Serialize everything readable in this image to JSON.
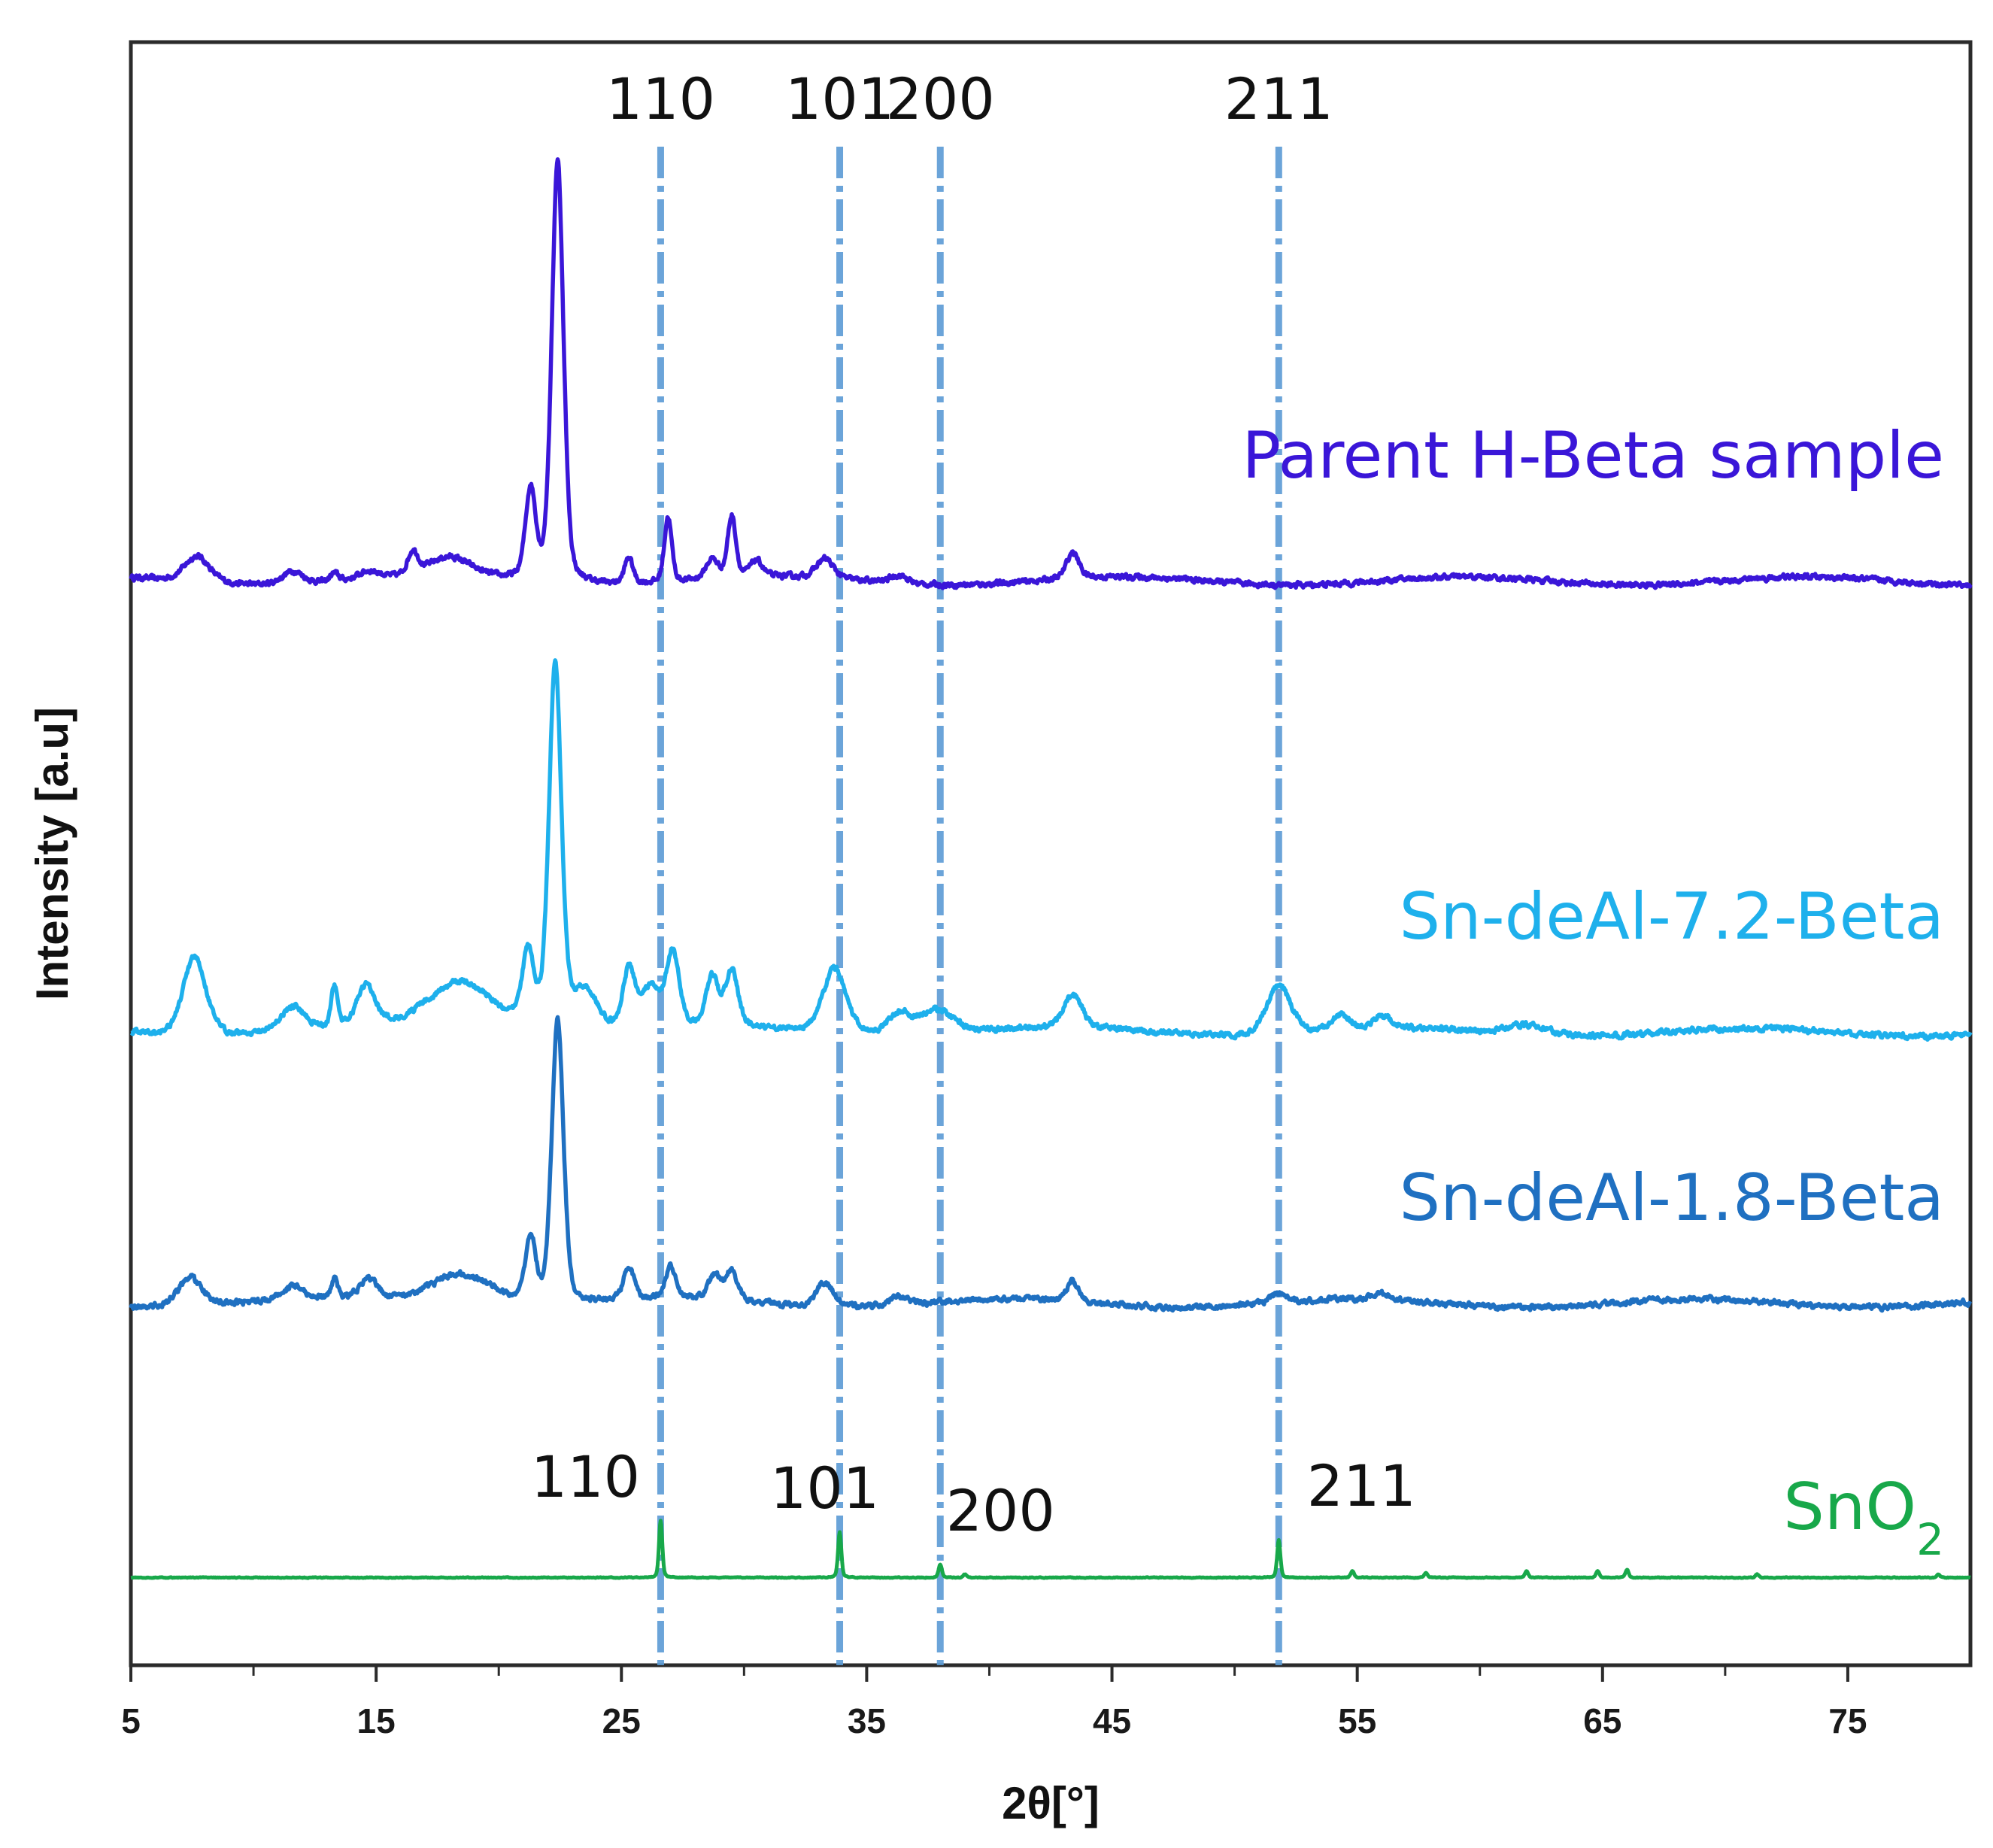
{
  "chart_data": {
    "type": "line",
    "title": "",
    "xlabel": "2θ[°]",
    "ylabel": "Intensity [a.u]",
    "xlim": [
      5,
      80
    ],
    "ylim": [
      0,
      100
    ],
    "grid": false,
    "x_ticks": [
      5,
      15,
      25,
      35,
      45,
      55,
      65,
      75
    ],
    "x_tick_labels": [
      "5",
      "15",
      "25",
      "35",
      "45",
      "55",
      "65",
      "75"
    ],
    "reference_lines": {
      "style": "dash-dot",
      "color": "#5b9bd5",
      "positions": [
        26.6,
        33.9,
        38.0,
        51.8
      ]
    },
    "top_hkl_labels": [
      {
        "text": "110",
        "x": 26.6
      },
      {
        "text": "101",
        "x": 33.9
      },
      {
        "text": "200",
        "x": 38.0
      },
      {
        "text": "211",
        "x": 51.8
      }
    ],
    "sno2_hkl_labels": [
      {
        "text": "110",
        "x": 26.6
      },
      {
        "text": "101",
        "x": 33.9
      },
      {
        "text": "200",
        "x": 38.0
      },
      {
        "text": "211",
        "x": 51.8
      }
    ],
    "series": [
      {
        "name": "Parent H-Beta sample",
        "label": "Parent H-Beta sample",
        "color": "#3a16d8",
        "baseline": 66.8,
        "peaks": [
          {
            "x": 7.7,
            "height": 1.6,
            "width": 0.6
          },
          {
            "x": 11.6,
            "height": 0.8,
            "width": 0.5
          },
          {
            "x": 13.3,
            "height": 0.5,
            "width": 0.2
          },
          {
            "x": 14.7,
            "height": 0.5,
            "width": 0.5
          },
          {
            "x": 16.5,
            "height": 1.4,
            "width": 0.25
          },
          {
            "x": 18.0,
            "height": 1.2,
            "width": 1.0
          },
          {
            "x": 21.3,
            "height": 5.5,
            "width": 0.25
          },
          {
            "x": 22.4,
            "height": 26.0,
            "width": 0.28
          },
          {
            "x": 25.3,
            "height": 1.6,
            "width": 0.2
          },
          {
            "x": 26.9,
            "height": 4.0,
            "width": 0.18
          },
          {
            "x": 28.7,
            "height": 1.2,
            "width": 0.3
          },
          {
            "x": 29.5,
            "height": 3.8,
            "width": 0.2
          },
          {
            "x": 30.5,
            "height": 1.0,
            "width": 0.3
          },
          {
            "x": 33.3,
            "height": 1.2,
            "width": 0.4
          },
          {
            "x": 36.3,
            "height": 0.5,
            "width": 0.4
          },
          {
            "x": 43.4,
            "height": 1.6,
            "width": 0.3
          }
        ]
      },
      {
        "name": "Sn-deAl-7.2-Beta",
        "label": "Sn-deAl-7.2-Beta",
        "color": "#1eb0ec",
        "baseline": 39.0,
        "peaks": [
          {
            "x": 7.6,
            "height": 4.8,
            "width": 0.55
          },
          {
            "x": 11.6,
            "height": 1.5,
            "width": 0.6
          },
          {
            "x": 13.3,
            "height": 2.5,
            "width": 0.15
          },
          {
            "x": 14.6,
            "height": 2.5,
            "width": 0.45
          },
          {
            "x": 18.5,
            "height": 3.0,
            "width": 1.6
          },
          {
            "x": 21.2,
            "height": 4.5,
            "width": 0.3
          },
          {
            "x": 22.3,
            "height": 22.5,
            "width": 0.3
          },
          {
            "x": 23.5,
            "height": 2.5,
            "width": 0.6
          },
          {
            "x": 25.3,
            "height": 3.5,
            "width": 0.3
          },
          {
            "x": 26.2,
            "height": 2.5,
            "width": 0.5
          },
          {
            "x": 27.1,
            "height": 4.5,
            "width": 0.3
          },
          {
            "x": 28.7,
            "height": 3.0,
            "width": 0.3
          },
          {
            "x": 29.5,
            "height": 3.5,
            "width": 0.3
          },
          {
            "x": 33.7,
            "height": 4.0,
            "width": 0.55
          },
          {
            "x": 36.3,
            "height": 1.2,
            "width": 0.5
          },
          {
            "x": 37.8,
            "height": 1.5,
            "width": 0.9
          },
          {
            "x": 43.4,
            "height": 2.0,
            "width": 0.45
          },
          {
            "x": 51.8,
            "height": 3.0,
            "width": 0.6
          },
          {
            "x": 54.3,
            "height": 1.0,
            "width": 0.4
          },
          {
            "x": 56.0,
            "height": 0.8,
            "width": 0.4
          },
          {
            "x": 62.0,
            "height": 0.6,
            "width": 0.9
          }
        ]
      },
      {
        "name": "Sn-deAl-1.8-Beta",
        "label": "Sn-deAl-1.8-Beta",
        "color": "#1f70c1",
        "baseline": 22.3,
        "peaks": [
          {
            "x": 7.4,
            "height": 1.8,
            "width": 0.55
          },
          {
            "x": 11.6,
            "height": 0.8,
            "width": 0.5
          },
          {
            "x": 13.3,
            "height": 1.2,
            "width": 0.15
          },
          {
            "x": 14.7,
            "height": 1.2,
            "width": 0.45
          },
          {
            "x": 18.5,
            "height": 2.0,
            "width": 1.5
          },
          {
            "x": 21.3,
            "height": 4.0,
            "width": 0.25
          },
          {
            "x": 22.4,
            "height": 17.5,
            "width": 0.28
          },
          {
            "x": 25.3,
            "height": 2.0,
            "width": 0.25
          },
          {
            "x": 27.0,
            "height": 2.0,
            "width": 0.25
          },
          {
            "x": 28.8,
            "height": 1.5,
            "width": 0.3
          },
          {
            "x": 29.5,
            "height": 1.8,
            "width": 0.3
          },
          {
            "x": 33.3,
            "height": 1.5,
            "width": 0.4
          },
          {
            "x": 36.3,
            "height": 0.6,
            "width": 0.4
          },
          {
            "x": 43.4,
            "height": 1.2,
            "width": 0.3
          },
          {
            "x": 51.8,
            "height": 0.6,
            "width": 0.4
          },
          {
            "x": 56.0,
            "height": 0.4,
            "width": 0.4
          }
        ]
      },
      {
        "name": "SnO2",
        "label": "SnO",
        "label_subscript": "2",
        "color": "#18a84a",
        "baseline": 5.4,
        "peaks": [
          {
            "x": 26.6,
            "height": 3.5,
            "width": 0.08
          },
          {
            "x": 33.9,
            "height": 2.8,
            "width": 0.08
          },
          {
            "x": 38.0,
            "height": 0.8,
            "width": 0.08
          },
          {
            "x": 39.0,
            "height": 0.2,
            "width": 0.08
          },
          {
            "x": 51.8,
            "height": 2.3,
            "width": 0.08
          },
          {
            "x": 54.8,
            "height": 0.4,
            "width": 0.08
          },
          {
            "x": 57.8,
            "height": 0.3,
            "width": 0.08
          },
          {
            "x": 61.9,
            "height": 0.4,
            "width": 0.08
          },
          {
            "x": 64.8,
            "height": 0.4,
            "width": 0.08
          },
          {
            "x": 66.0,
            "height": 0.5,
            "width": 0.08
          },
          {
            "x": 71.3,
            "height": 0.2,
            "width": 0.08
          },
          {
            "x": 78.7,
            "height": 0.2,
            "width": 0.08
          }
        ]
      }
    ]
  }
}
